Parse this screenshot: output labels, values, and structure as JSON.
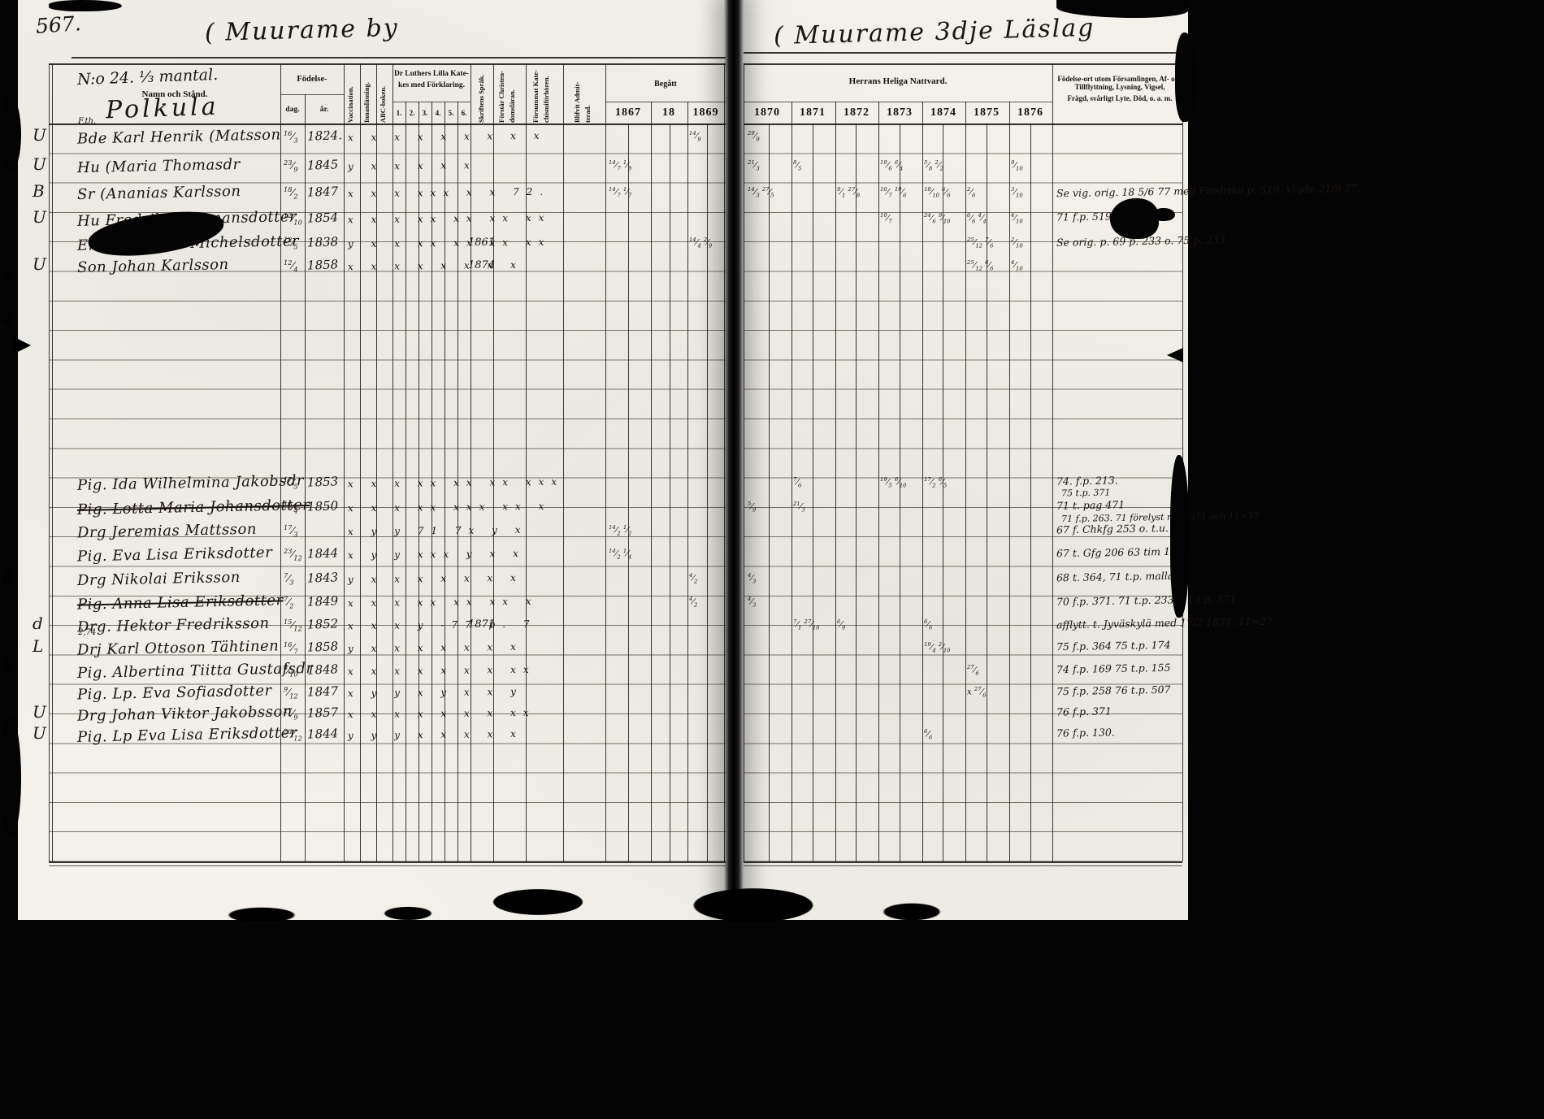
{
  "titles": {
    "page_number": "567.",
    "left": "( Muurame by",
    "right": "( Muurame 3dje Läslag"
  },
  "form": {
    "estate": "N:o 24. ⅓ mantal.",
    "name_header": "Namn och Stånd.",
    "farm": "Polkula",
    "birth": {
      "label": "Födelse-",
      "day": "dag.",
      "year": "år."
    },
    "vcols": {
      "vacc": "Vaccination.",
      "innan": "Innanläsning.",
      "abc": "ABC-boken.",
      "skrift": "Skriftens Språk.",
      "forstar_1": "Förstår Christen-",
      "forstar_2": "domsläran.",
      "forsummat_1": "Försummat Kate-",
      "forsummat_2": "chismiförhören.",
      "admit_1": "Blifvit Admit-",
      "admit_2": "terad."
    },
    "catechism": {
      "label_1": "Dr Luthers Lilla Kate-",
      "label_2": "kes med Förklaring.",
      "numbers": [
        "1.",
        "2.",
        "3.",
        "4.",
        "5.",
        "6."
      ]
    },
    "left_years_label": "Begått",
    "left_years": [
      "1867",
      "18",
      "1869"
    ],
    "right_years_label": "Herrans Heliga Nattvard.",
    "right_years": [
      "1870",
      "1871",
      "1872",
      "1873",
      "1874",
      "1875",
      "1876"
    ],
    "notes_header_1": "Födelse-ort utom Församlingen, Af- och Tillflyttning, Lysning, Vigsel,",
    "notes_header_2": "Frägd, svårligt Lyte, Död, o. a. m."
  },
  "rows": [
    {
      "margin": "U",
      "sup": "F.th.",
      "name": "Bde Karl Henrik (Matsson",
      "day": "16/3",
      "year": "1824.",
      "marks": "x x x x x x x x x",
      "admit": "",
      "comm": {
        "1869": "14/9",
        "1870": "29/9"
      },
      "note": "",
      "note2": ""
    },
    {
      "margin": "U",
      "sup": "",
      "name": "Hu (Maria Thomasdr",
      "day": "23/9",
      "year": "1845",
      "marks": "y x x x x x",
      "admit": "",
      "comm": {
        "1867": "14/7 1/8",
        "1870": "21/3",
        "1871": "8/5",
        "1873": "19/6 6/4",
        "1874": "5/8 2/2",
        "1876": "9/10"
      },
      "note": "",
      "note2": ""
    },
    {
      "margin": "B",
      "sup": "",
      "name": "Sr (Ananias Karlsson",
      "day": "18/2",
      "year": "1847",
      "marks": "x x x xxx x x 72.",
      "admit": "",
      "comm": {
        "1867": "14/7 1/7",
        "1870": "14/3 27/5",
        "1872": "9/1 27/8",
        "1873": "10/7 19/6",
        "1874": "18/10 6/6",
        "1875": "2/6",
        "1876": "3/10"
      },
      "note": "Se vig. orig. 18 5/6 77 med Fredrika p. 519. Vigde 21/9 77.",
      "note2": ""
    },
    {
      "margin": "U",
      "sup": "",
      "name": "Hu Fredrika Hermansdotter",
      "day": "12/10",
      "year": "1854",
      "marks": "x x x xx xx xx xx",
      "admit": "",
      "comm": {
        "1873": "10/7",
        "1874": "24/6 9/10",
        "1875": "6/6 4/4",
        "1876": "4/10"
      },
      "note": "71 f.p. 519.",
      "note2": ""
    },
    {
      "margin": "",
      "sup": "",
      "name": "Enk. Fredrika Michelsdotter",
      "day": "12/5",
      "year": "1838",
      "marks": "y x x xx xx xx xx",
      "admit": "1861",
      "comm": {
        "1869": "14/4 2/9",
        "1875": "25/12 7/6",
        "1876": "2/10"
      },
      "note": "Se orig. p. 69 p. 233 o. 75 p. 233.",
      "note2": ""
    },
    {
      "margin": "U",
      "sup": "",
      "name": "Son Johan Karlsson",
      "day": "12/4",
      "year": "1858",
      "marks": "x x x x x x x x",
      "admit": "1874",
      "comm": {
        "1875": "25/12 6/6",
        "1876": "4/10"
      },
      "note": "",
      "note2": ""
    },
    {
      "margin": "",
      "sup": "",
      "name": "Pig. Ida Wilhelmina Jakobsdr",
      "day": "17/5",
      "year": "1853",
      "marks": "x x x xx xx xx xxx",
      "admit": "",
      "comm": {
        "1871": "7/6",
        "1873": "19/5 6/10",
        "1874": "17/2 6/5"
      },
      "note": "74. f.p. 213.",
      "note2": "75 t.p. 371"
    },
    {
      "margin": "",
      "sup": "",
      "name": "Pig. Lotta Maria Johansdotter",
      "struck": true,
      "day": "16/4",
      "year": "1850",
      "marks": "x x x xx xxx xx x",
      "admit": "",
      "comm": {
        "1870": "5/9",
        "1871": "21/3"
      },
      "note": "71 t. pag 471",
      "note2": "71 f.p. 263. 71 förelyst m.p. 371 och 11=33"
    },
    {
      "margin": "",
      "sup": "",
      "name": "Drg Jeremias Mattsson",
      "day": "17/3",
      "year": "",
      "marks": "x y y 71 7x y x",
      "admit": "",
      "comm": {
        "1867": "14/2 1/2"
      },
      "note": "67 f. Chkfg 253 o. t.u. 177",
      "note2": ""
    },
    {
      "margin": "",
      "sup": "",
      "name": "Pig. Eva Lisa Eriksdotter",
      "day": "23/12",
      "year": "1844",
      "marks": "x y y xxx y x x",
      "admit": "",
      "comm": {
        "1867": "14/2 1/4"
      },
      "note": "67 t. Gfg 206 63 tim 154",
      "note2": ""
    },
    {
      "margin": "",
      "sup": "",
      "name": "Drg Nikolai Eriksson",
      "day": "7/3",
      "year": "1843",
      "marks": "y x x x x x x x",
      "admit": "",
      "comm": {
        "1869": "4/2",
        "1870": "4/3"
      },
      "note": "68 t. 364, 71 t.p. mallan",
      "note2": ""
    },
    {
      "margin": "",
      "sup": "",
      "name": "Pig. Anna Lisa Eriksdotter",
      "struck": true,
      "day": "7/2",
      "year": "1849",
      "marks": "x x x xx xx xx x",
      "admit": "",
      "comm": {
        "1869": "4/2",
        "1870": "4/3"
      },
      "note": "70 f.p. 371. 71 t.p. 233. 71 t.p. 371",
      "note2": ""
    },
    {
      "margin": "d",
      "sup": "",
      "name": "Drg. Hektor Fredriksson",
      "day": "15/12",
      "year": "1852",
      "marks": "x x x y -77 p. 7",
      "admit": "1871",
      "comm": {
        "1871": "7/1 27/10",
        "1872": "6/9",
        "1874": "6/6"
      },
      "note": "afflytt. t. Jyväskylä med 17/2 1874. 11=27",
      "note2": ""
    },
    {
      "margin": "L",
      "sup": "2,74",
      "name": "Drj Karl Ottoson Tähtinen",
      "day": "16/7",
      "year": "1858",
      "marks": "y x x x x x x x",
      "admit": "",
      "comm": {
        "1874": "19/4 2/10"
      },
      "note": "75 f.p. 364 75 t.p. 174",
      "note2": ""
    },
    {
      "margin": "",
      "sup": "",
      "name": "Pig. Albertina Tiitta Gustafsdr",
      "day": "4/10",
      "year": "1848",
      "marks": "x x x x x x x xx",
      "admit": "",
      "comm": {
        "1875": "27/6"
      },
      "note": "74 f.p. 169 75 t.p. 155",
      "note2": ""
    },
    {
      "margin": "",
      "sup": "",
      "name": "Pig. Lp. Eva Sofiasdotter",
      "day": "9/12",
      "year": "1847",
      "marks": "x y y x y x x y",
      "admit": "",
      "comm": {
        "1875": "x 27/6"
      },
      "note": "75 f.p. 258 76 t.p. 507",
      "note2": ""
    },
    {
      "margin": "U",
      "sup": "",
      "name": "Drg Johan Viktor Jakobsson",
      "day": "27/9",
      "year": "1857",
      "marks": "x x x x x x x xx",
      "admit": "",
      "comm": {},
      "note": "76 f.p. 371",
      "note2": ""
    },
    {
      "margin": "U",
      "sup": "",
      "name": "Pig. Lp Eva Lisa Eriksdotter",
      "day": "23/12",
      "year": "1844",
      "marks": "y y y x x x x x",
      "admit": "",
      "comm": {
        "1874": "6/6"
      },
      "note": "76 f.p. 130.",
      "note2": ""
    }
  ]
}
